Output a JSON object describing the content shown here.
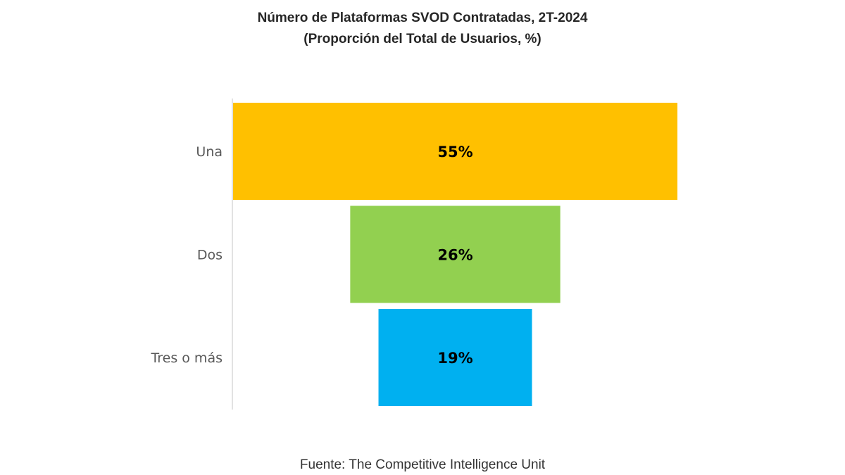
{
  "chart_data": {
    "type": "bar",
    "subtype": "funnel",
    "orientation": "horizontal",
    "title": "Número de Plataformas SVOD Contratadas, 2T-2024",
    "subtitle": "(Proporción del Total de Usuarios, %)",
    "categories": [
      "Una",
      "Dos",
      "Tres o más"
    ],
    "values": [
      55,
      26,
      19
    ],
    "data_labels": [
      "55%",
      "26%",
      "19%"
    ],
    "colors": [
      "#FFC000",
      "#92D050",
      "#00B0F0"
    ],
    "grid": false,
    "legend": "none"
  },
  "source": "Fuente: The Competitive Intelligence Unit"
}
